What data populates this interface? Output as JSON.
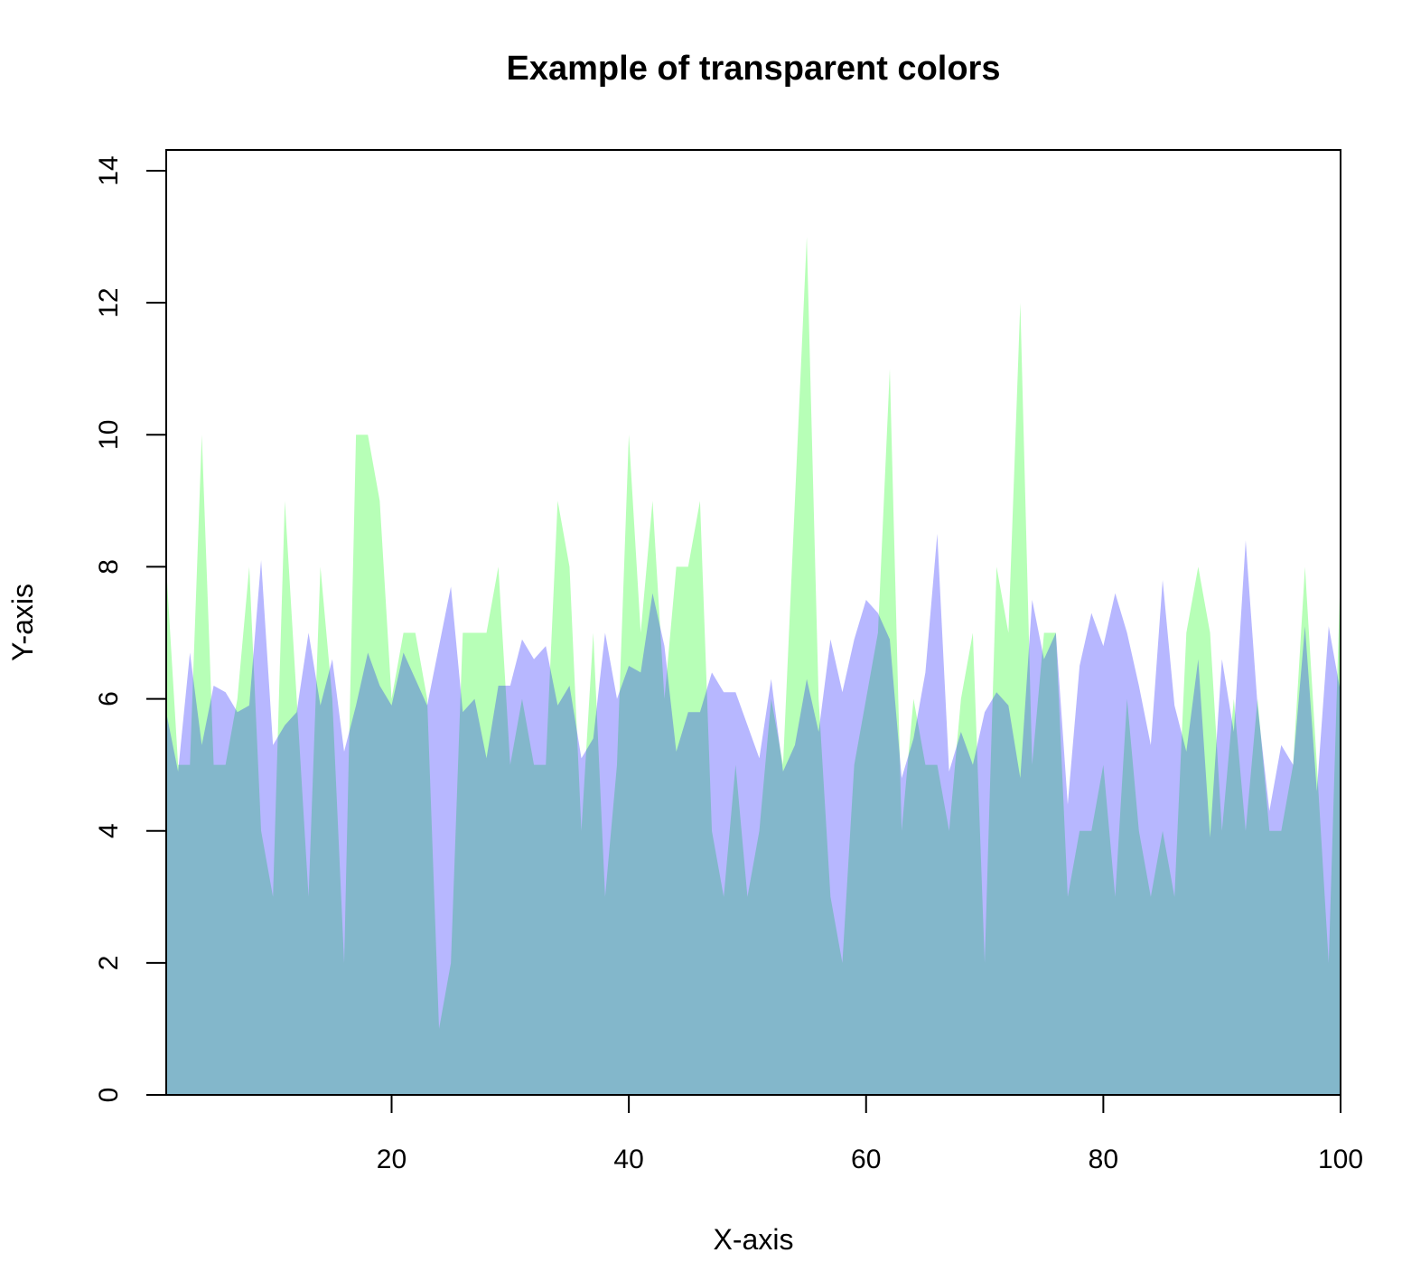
{
  "chart_data": {
    "type": "area",
    "title": "Example of transparent colors",
    "xlabel": "X-axis",
    "ylabel": "Y-axis",
    "xlim": [
      1,
      100
    ],
    "ylim": [
      0,
      14
    ],
    "x_ticks": [
      20,
      40,
      60,
      80,
      100
    ],
    "y_ticks": [
      0,
      2,
      4,
      6,
      8,
      10,
      12,
      14
    ],
    "grid": false,
    "legend": "none",
    "x": [
      1,
      2,
      3,
      4,
      5,
      6,
      7,
      8,
      9,
      10,
      11,
      12,
      13,
      14,
      15,
      16,
      17,
      18,
      19,
      20,
      21,
      22,
      23,
      24,
      25,
      26,
      27,
      28,
      29,
      30,
      31,
      32,
      33,
      34,
      35,
      36,
      37,
      38,
      39,
      40,
      41,
      42,
      43,
      44,
      45,
      46,
      47,
      48,
      49,
      50,
      51,
      52,
      53,
      54,
      55,
      56,
      57,
      58,
      59,
      60,
      61,
      62,
      63,
      64,
      65,
      66,
      67,
      68,
      69,
      70,
      71,
      72,
      73,
      74,
      75,
      76,
      77,
      78,
      79,
      80,
      81,
      82,
      83,
      84,
      85,
      86,
      87,
      88,
      89,
      90,
      91,
      92,
      93,
      94,
      95,
      96,
      97,
      98,
      99,
      100
    ],
    "series": [
      {
        "color": "#00ff0048",
        "values": [
          8,
          5,
          5,
          10,
          5,
          5,
          6,
          8,
          4,
          3,
          9,
          6,
          3,
          8,
          6,
          2,
          10,
          10,
          9,
          6,
          7,
          7,
          6,
          1,
          2,
          7,
          7,
          7,
          8,
          5,
          6,
          5,
          5,
          9,
          8,
          4,
          7,
          3,
          5,
          10,
          7,
          9,
          6,
          8,
          8,
          9,
          4,
          3,
          5,
          3,
          4,
          6,
          5,
          9,
          13,
          6,
          3,
          2,
          5,
          6,
          7,
          11,
          4,
          6,
          5,
          5,
          4,
          6,
          7,
          2,
          8,
          7,
          12,
          5,
          7,
          7,
          3,
          4,
          4,
          5,
          3,
          6,
          4,
          3,
          4,
          3,
          7,
          8,
          7,
          4,
          6,
          4,
          6,
          4,
          4,
          5,
          8,
          5,
          2,
          8
        ]
      },
      {
        "color": "#0000ff48",
        "values": [
          5.8,
          4.9,
          6.7,
          5.3,
          6.2,
          6.1,
          5.8,
          5.9,
          8.1,
          5.3,
          5.6,
          5.8,
          7.0,
          5.9,
          6.6,
          5.2,
          5.9,
          6.7,
          6.2,
          5.9,
          6.7,
          6.3,
          5.9,
          6.8,
          7.7,
          5.8,
          6.0,
          5.1,
          6.2,
          6.2,
          6.9,
          6.6,
          6.8,
          5.9,
          6.2,
          5.1,
          5.4,
          7.0,
          6.0,
          6.5,
          6.4,
          7.6,
          6.8,
          5.2,
          5.8,
          5.8,
          6.4,
          6.1,
          6.1,
          5.6,
          5.1,
          6.3,
          4.9,
          5.3,
          6.3,
          5.5,
          6.9,
          6.1,
          6.9,
          7.5,
          7.3,
          6.9,
          4.8,
          5.4,
          6.4,
          8.5,
          4.9,
          5.5,
          5.0,
          5.8,
          6.1,
          5.9,
          4.8,
          7.5,
          6.6,
          7.0,
          4.4,
          6.5,
          7.3,
          6.8,
          7.6,
          7.0,
          6.2,
          5.3,
          7.8,
          5.9,
          5.2,
          6.6,
          3.9,
          6.6,
          5.5,
          8.4,
          5.9,
          4.3,
          5.3,
          5.0,
          7.1,
          4.6,
          7.1,
          6.1
        ]
      }
    ]
  }
}
